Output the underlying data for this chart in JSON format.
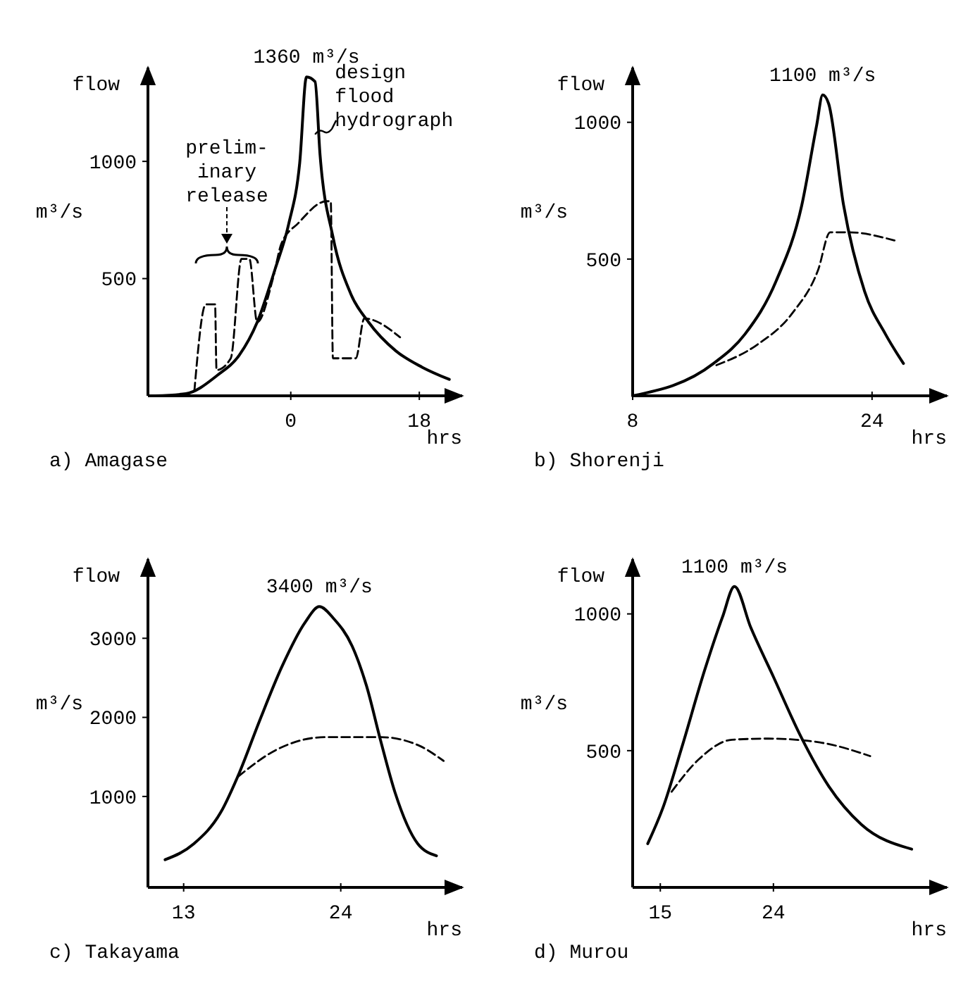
{
  "chart_data": [
    {
      "type": "line",
      "title": "a) Amagase",
      "ylabel": "flow\nm³/s",
      "xlabel": "hrs",
      "xlim": [
        -20,
        24
      ],
      "ylim": [
        0,
        1400
      ],
      "xticks": [
        0,
        18
      ],
      "yticks": [
        500,
        1000
      ],
      "line_style": "solid",
      "series": [
        {
          "color": "#000000",
          "x": [
            -19,
            -14.7,
            -10.3,
            -7.2,
            -4.7,
            -2.2,
            -0.3,
            1.25,
            2.2,
            3.4,
            4.1,
            5.9,
            8.4,
            10.9,
            14.7,
            18.4,
            22.2
          ],
          "values": [
            0,
            9,
            87,
            174,
            314,
            540,
            732,
            993,
            1360,
            1340,
            1028,
            679,
            435,
            314,
            192,
            122,
            70
          ]
        },
        {
          "color": "#000000",
          "line_style": "dashed",
          "x": [
            -13.5,
            -11.9,
            -10.6,
            -10.4,
            -8.4,
            -6.9,
            -5.8,
            -4.7,
            -2.5,
            -1.3,
            1,
            5,
            5.6,
            5.9,
            9.1,
            10.3,
            15.3
          ],
          "values": [
            20,
            390,
            390,
            110,
            160,
            584,
            584,
            314,
            500,
            650,
            735,
            830,
            830,
            160,
            160,
            330,
            250
          ]
        }
      ],
      "annotations": [
        {
          "text": "1360 m³/s",
          "x": 2.2,
          "y": 1360
        },
        "prelim-\ninary\nrelease",
        {
          "text": "design\nflood\nhydrograph",
          "x": 3.4,
          "y": 1115
        }
      ]
    },
    {
      "type": "line",
      "title": "b) Shorenji",
      "ylabel": "flow\nm³/s",
      "xlabel": "hrs",
      "xlim": [
        8,
        29
      ],
      "ylim": [
        0,
        1200
      ],
      "xticks": [
        8,
        24
      ],
      "yticks": [
        500,
        1000
      ],
      "line_style": "solid",
      "series": [
        {
          "color": "#000000",
          "x": [
            8,
            13.4,
            15.5,
            17.6,
            19.3,
            20.3,
            20.7,
            21.1,
            22.1,
            23.5,
            24.9,
            26.1
          ],
          "values": [
            0,
            118,
            225,
            421,
            696,
            990,
            1100,
            1068,
            696,
            382,
            225,
            118
          ]
        },
        {
          "color": "#000000",
          "line_style": "dashed",
          "x": [
            13.6,
            16.3,
            18.7,
            20.4,
            21.2,
            22.4,
            25.5
          ],
          "values": [
            112,
            186,
            304,
            461,
            598,
            598,
            568
          ]
        }
      ],
      "annotations": [
        {
          "text": "1100 m³/s",
          "x": 20.7,
          "y": 1100
        }
      ]
    },
    {
      "type": "line",
      "title": "c) Takayama",
      "ylabel": "flow\nm³/s",
      "xlabel": "hrs",
      "xlim": [
        10.5,
        32.5
      ],
      "ylim": [
        -150,
        4000
      ],
      "xticks": [
        13,
        24
      ],
      "yticks": [
        1000,
        2000,
        3000
      ],
      "line_style": "solid",
      "series": [
        {
          "color": "#000000",
          "x": [
            11.7,
            13.7,
            15.6,
            16.9,
            18.3,
            19.9,
            21.5,
            22.5,
            23.5,
            24.8,
            25.8,
            26.8,
            27.8,
            29.4,
            30.7
          ],
          "values": [
            200,
            400,
            800,
            1300,
            1950,
            2650,
            3200,
            3400,
            3250,
            2900,
            2400,
            1700,
            1050,
            400,
            250
          ]
        },
        {
          "color": "#000000",
          "line_style": "dashed",
          "x": [
            16.8,
            19.6,
            22.9,
            26.8,
            29.4,
            31.2
          ],
          "values": [
            1250,
            1600,
            1750,
            1750,
            1650,
            1450
          ]
        }
      ],
      "annotations": [
        {
          "text": "3400 m³/s",
          "x": 22.5,
          "y": 3400
        }
      ]
    },
    {
      "type": "line",
      "title": "d) Murou",
      "ylabel": "flow\nm³/s",
      "xlabel": "hrs",
      "xlim": [
        12.8,
        37.8
      ],
      "ylim": [
        0,
        1200
      ],
      "xticks": [
        15,
        24
      ],
      "yticks": [
        500,
        1000
      ],
      "line_style": "solid",
      "series": [
        {
          "color": "#000000",
          "x": [
            14,
            15.2,
            16.7,
            18.5,
            19.96,
            20.9,
            22.2,
            24,
            26.2,
            28.4,
            31,
            35
          ],
          "values": [
            160,
            290,
            510,
            790,
            990,
            1100,
            950,
            770,
            550,
            370,
            230,
            140
          ]
        },
        {
          "color": "#000000",
          "line_style": "dashed",
          "x": [
            15.9,
            18.1,
            20.7,
            23.6,
            27.7,
            31.7
          ],
          "values": [
            350,
            470,
            540,
            544,
            530,
            480
          ]
        }
      ],
      "annotations": [
        {
          "text": "1100 m³/s",
          "x": 20.9,
          "y": 1100
        }
      ]
    }
  ]
}
